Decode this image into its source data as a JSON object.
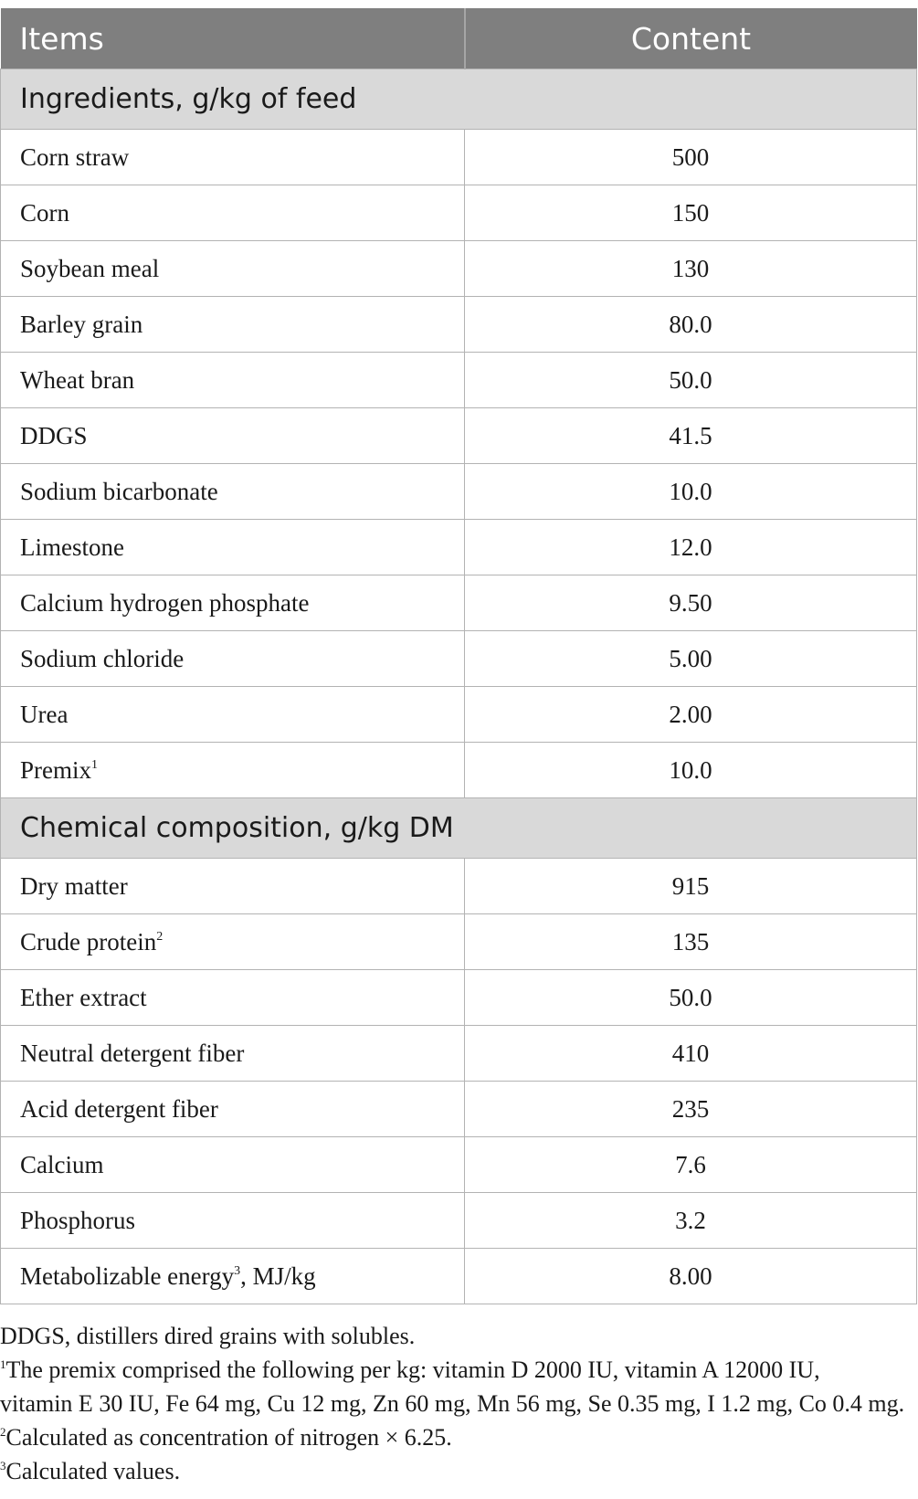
{
  "table": {
    "header": {
      "items": "Items",
      "content": "Content"
    },
    "sections": [
      {
        "title": "Ingredients, g/kg of feed",
        "rows": [
          {
            "name": "Corn straw",
            "value": "500"
          },
          {
            "name": "Corn",
            "value": "150"
          },
          {
            "name": "Soybean meal",
            "value": "130"
          },
          {
            "name": "Barley grain",
            "value": "80.0"
          },
          {
            "name": "Wheat bran",
            "value": "50.0"
          },
          {
            "name": "DDGS",
            "value": "41.5"
          },
          {
            "name": "Sodium bicarbonate",
            "value": "10.0"
          },
          {
            "name": "Limestone",
            "value": "12.0"
          },
          {
            "name": "Calcium hydrogen phosphate",
            "value": "9.50"
          },
          {
            "name": "Sodium chloride",
            "value": "5.00"
          },
          {
            "name": "Urea",
            "value": "2.00"
          },
          {
            "name": "Premix",
            "sup": "1",
            "suffix": "",
            "value": "10.0"
          }
        ]
      },
      {
        "title": "Chemical composition, g/kg DM",
        "rows": [
          {
            "name": "Dry matter",
            "value": "915"
          },
          {
            "name": "Crude protein",
            "sup": "2",
            "suffix": "",
            "value": "135"
          },
          {
            "name": "Ether extract",
            "value": "50.0"
          },
          {
            "name": "Neutral detergent fiber",
            "value": "410"
          },
          {
            "name": "Acid detergent fiber",
            "value": "235"
          },
          {
            "name": "Calcium",
            "value": "7.6"
          },
          {
            "name": "Phosphorus",
            "value": "3.2"
          },
          {
            "name": "Metabolizable energy",
            "sup": "3",
            "suffix": ", MJ/kg",
            "value": "8.00"
          }
        ]
      }
    ]
  },
  "footnotes": {
    "abbrev": "DDGS, distillers dired grains with solubles.",
    "note1_mark": "1",
    "note1_line1": "The premix comprised the following per kg: vitamin D 2000 IU, vitamin A 12000 IU,",
    "note1_line2": "vitamin E 30 IU, Fe 64 mg, Cu 12 mg, Zn 60 mg, Mn 56 mg, Se 0.35 mg, I 1.2 mg, Co 0.4 mg.",
    "note2_mark": "2",
    "note2": "Calculated as concentration of nitrogen × 6.25.",
    "note3_mark": "3",
    "note3": "Calculated values."
  }
}
